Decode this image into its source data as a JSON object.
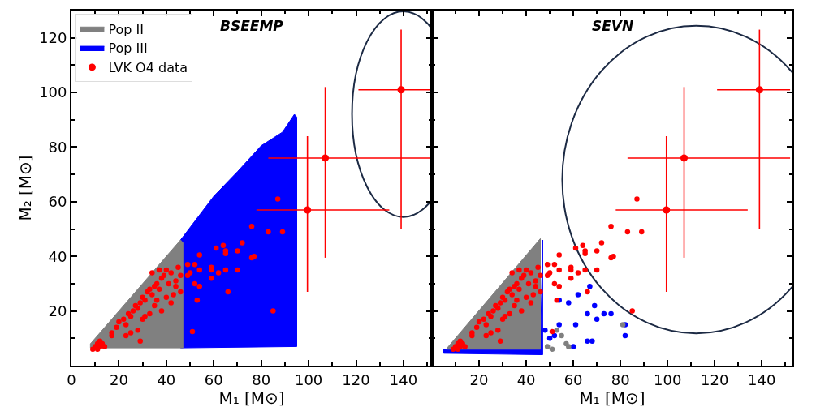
{
  "chart_data": [
    {
      "type": "scatter",
      "title": "BSEEMP",
      "xlabel": "M₁ [M⊙]",
      "ylabel": "M₂ [M⊙]",
      "xlim": [
        0,
        152
      ],
      "ylim": [
        0,
        130
      ],
      "xticks": [
        0,
        20,
        40,
        60,
        80,
        100,
        120,
        140
      ],
      "yticks": [
        20,
        40,
        60,
        80,
        100,
        120
      ],
      "legend": "top left",
      "grid": false,
      "series": [
        {
          "type": "area",
          "name": "Pop III",
          "color": "#0000ff",
          "x": [
            46,
            60,
            70,
            80,
            89,
            94,
            95,
            95,
            46,
            46
          ],
          "values": [
            46,
            62,
            71,
            80.5,
            85.5,
            92,
            91,
            7,
            6.5,
            46
          ]
        },
        {
          "type": "area",
          "name": "Pop II",
          "color": "#808080",
          "x": [
            8,
            46,
            47,
            47,
            8,
            8
          ],
          "values": [
            8,
            46,
            45,
            6.5,
            6.5,
            8
          ]
        },
        {
          "marker": "circle",
          "color": "#ff0000",
          "x": [
            9,
            10,
            11,
            12,
            13,
            14,
            12,
            11,
            17,
            17,
            19,
            20,
            22,
            23,
            24,
            25,
            26,
            27,
            28,
            29,
            30,
            31,
            32,
            33,
            34,
            35,
            36,
            37,
            38,
            39,
            40,
            41,
            42,
            44,
            45,
            43,
            40,
            38,
            35,
            33,
            30,
            28,
            25,
            23,
            29,
            36,
            42,
            46,
            46,
            44,
            34,
            37,
            31,
            49,
            50,
            49,
            52,
            52,
            54,
            54,
            59,
            59,
            62,
            65,
            70,
            59,
            54,
            66,
            53,
            51,
            64,
            65,
            65,
            70,
            72,
            76,
            77,
            61,
            87,
            76,
            83,
            89,
            85
          ],
          "values": [
            6,
            7,
            8,
            7,
            8,
            7,
            9,
            6,
            11,
            12,
            14,
            16,
            17,
            15,
            19,
            18,
            20,
            22,
            21,
            23,
            25,
            24,
            27,
            28,
            26,
            29,
            30,
            28,
            32,
            33,
            35,
            30,
            34,
            31,
            36,
            26,
            25,
            20,
            22,
            19,
            17,
            13,
            12,
            11,
            9,
            24,
            23,
            27,
            33,
            29,
            34,
            35,
            18,
            37,
            34,
            33,
            37,
            30,
            40.5,
            35,
            35,
            36,
            34,
            35,
            35,
            32,
            29,
            27,
            24,
            12.5,
            44,
            42,
            41,
            42,
            45,
            39.5,
            40,
            43,
            61,
            51,
            49,
            49,
            20
          ]
        },
        {
          "marker": "circle",
          "name": "LVK O4 data",
          "color": "#ff0000",
          "x": [
            99.5,
            107,
            139
          ],
          "values": [
            57,
            76,
            101
          ],
          "errors": [
            [
              27,
              84
            ],
            [
              39.5,
              102
            ],
            [
              50,
              123
            ]
          ],
          "xerrors": [
            [
              78,
              134
            ],
            [
              83,
              151
            ],
            [
              121,
              151
            ]
          ]
        }
      ]
    },
    {
      "type": "scatter",
      "title": "SEVN",
      "xlabel": "M₁ [M⊙]",
      "xlim": [
        0,
        153
      ],
      "ylim": [
        0,
        130
      ],
      "xticks": [
        20,
        40,
        60,
        80,
        100,
        120,
        140
      ],
      "yticks": [
        20,
        40,
        60,
        80,
        100,
        120
      ],
      "tick_labels": "x",
      "grid": false,
      "series": [
        {
          "type": "area",
          "color": "#0000ff",
          "x": [
            5,
            47,
            47,
            46,
            5,
            5
          ],
          "values": [
            4.5,
            4,
            46,
            6,
            6,
            4.5
          ]
        },
        {
          "type": "area",
          "color": "#808080",
          "x": [
            6,
            46,
            46,
            6
          ],
          "values": [
            6,
            46.5,
            6,
            6
          ]
        },
        {
          "marker": "circle",
          "color": "#0000ff",
          "x": [
            54,
            58,
            62,
            67,
            69,
            73,
            76,
            66,
            70,
            61,
            54,
            82,
            82,
            66,
            68,
            60,
            52,
            48,
            50
          ],
          "values": [
            24,
            23,
            26,
            29,
            22,
            19,
            19,
            19,
            17,
            15,
            15,
            15,
            11,
            9,
            9,
            7,
            11,
            13,
            10
          ]
        },
        {
          "marker": "circle",
          "color": "#808080",
          "x": [
            53,
            55,
            49,
            51,
            57,
            58,
            81
          ],
          "values": [
            13,
            11,
            7,
            6,
            8,
            7,
            15
          ]
        },
        {
          "marker": "circle",
          "color": "#ff0000",
          "x": [
            9,
            10,
            11,
            12,
            13,
            14,
            12,
            11,
            17,
            17,
            19,
            20,
            22,
            23,
            24,
            25,
            26,
            27,
            28,
            29,
            30,
            31,
            32,
            33,
            34,
            35,
            36,
            37,
            38,
            39,
            40,
            41,
            42,
            44,
            45,
            43,
            40,
            38,
            35,
            33,
            30,
            28,
            25,
            23,
            29,
            36,
            42,
            46,
            46,
            44,
            34,
            37,
            31,
            49,
            50,
            49,
            52,
            52,
            54,
            54,
            59,
            59,
            62,
            65,
            70,
            59,
            54,
            66,
            53,
            51,
            64,
            65,
            65,
            70,
            72,
            76,
            77,
            61,
            87,
            76,
            83,
            89,
            85
          ],
          "values": [
            6,
            7,
            8,
            7,
            8,
            7,
            9,
            6,
            11,
            12,
            14,
            16,
            17,
            15,
            19,
            18,
            20,
            22,
            21,
            23,
            25,
            24,
            27,
            28,
            26,
            29,
            30,
            28,
            32,
            33,
            35,
            30,
            34,
            31,
            36,
            26,
            25,
            20,
            22,
            19,
            17,
            13,
            12,
            11,
            9,
            24,
            23,
            27,
            33,
            29,
            34,
            35,
            18,
            37,
            34,
            33,
            37,
            30,
            40.5,
            35,
            35,
            36,
            34,
            35,
            35,
            32,
            29,
            27,
            24,
            12.5,
            44,
            42,
            41,
            42,
            45,
            39.5,
            40,
            43,
            61,
            51,
            49,
            49,
            20
          ]
        },
        {
          "marker": "circle",
          "color": "#ff0000",
          "x": [
            99.5,
            107,
            139
          ],
          "values": [
            57,
            76,
            101
          ],
          "errors": [
            [
              27,
              84
            ],
            [
              39.5,
              102
            ],
            [
              50,
              123
            ]
          ],
          "xerrors": [
            [
              78,
              134
            ],
            [
              83,
              152
            ],
            [
              121,
              152
            ]
          ]
        }
      ]
    }
  ]
}
